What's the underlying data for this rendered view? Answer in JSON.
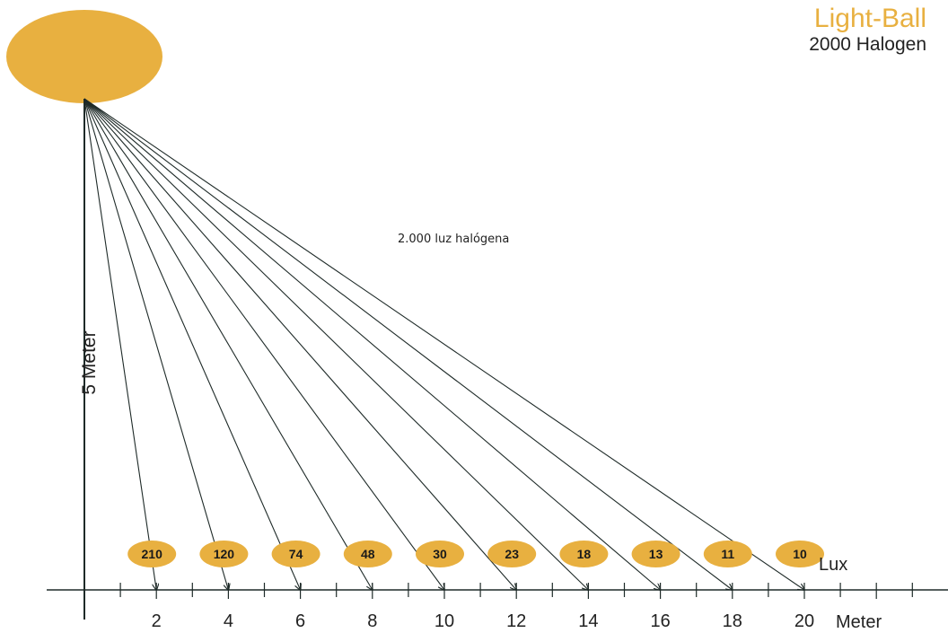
{
  "brand": {
    "title": "Light-Ball",
    "subtitle": "2000 Halogen",
    "title_color": "#e8b040"
  },
  "center_label": "2.000 luz halógena",
  "vertical_axis_label": "5 Meter",
  "lux_label": "Lux",
  "meter_label": "Meter",
  "colors": {
    "ball": "#e8b040",
    "badge": "#e8b040",
    "line": "#1e2a28"
  },
  "chart_data": {
    "type": "diagram",
    "light_height_m": 5,
    "x_unit": "Meter",
    "value_unit": "Lux",
    "distance_ticks": [
      "2",
      "4",
      "6",
      "8",
      "10",
      "12",
      "14",
      "16",
      "18",
      "20"
    ],
    "points": [
      {
        "distance_m": 2,
        "lux": "210"
      },
      {
        "distance_m": 4,
        "lux": "120"
      },
      {
        "distance_m": 6,
        "lux": "74"
      },
      {
        "distance_m": 8,
        "lux": "48"
      },
      {
        "distance_m": 10,
        "lux": "30"
      },
      {
        "distance_m": 12,
        "lux": "23"
      },
      {
        "distance_m": 14,
        "lux": "18"
      },
      {
        "distance_m": 16,
        "lux": "13"
      },
      {
        "distance_m": 18,
        "lux": "11"
      },
      {
        "distance_m": 20,
        "lux": "10"
      }
    ]
  }
}
